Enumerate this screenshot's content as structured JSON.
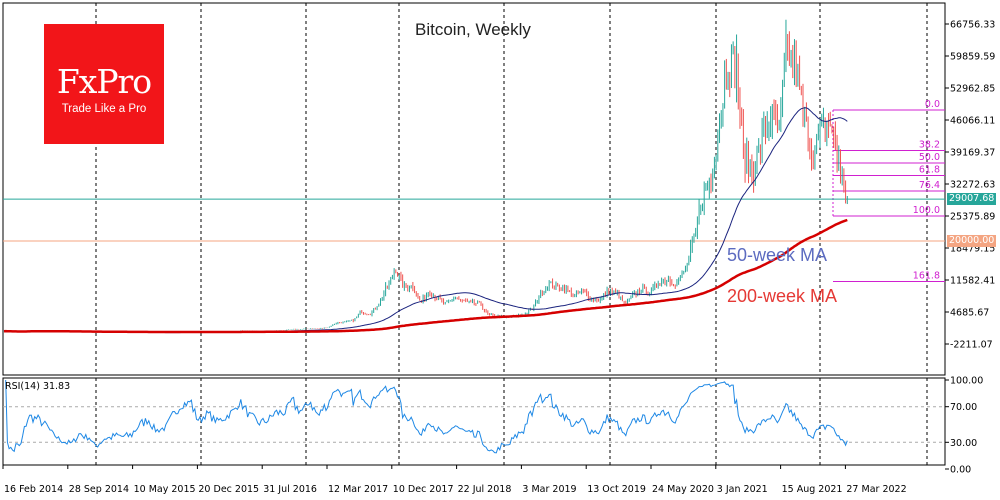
{
  "chart_data": {
    "type": "candlestick",
    "title": "Bitcoin, Weekly",
    "instrument": "Bitcoin",
    "timeframe": "Weekly",
    "y_ticks": [
      "66756.33",
      "59859.59",
      "52962.85",
      "46066.11",
      "39169.37",
      "32272.63",
      "25375.89",
      "18479.15",
      "11582.41",
      "4685.67",
      "-2211.07"
    ],
    "ylim": [
      -5000,
      72000
    ],
    "x_ticks": [
      "16 Feb 2014",
      "28 Sep 2014",
      "10 May 2015",
      "20 Dec 2015",
      "31 Jul 2016",
      "12 Mar 2017",
      "10 Dec 2017",
      "22 Jul 2018",
      "3 Mar 2019",
      "13 Oct 2019",
      "24 May 2020",
      "3 Jan 2021",
      "15 Aug 2021",
      "27 Mar 2022"
    ],
    "monthly_close_approx": {
      "start": "Feb 2014",
      "values": [
        600,
        450,
        440,
        630,
        640,
        590,
        480,
        390,
        340,
        380,
        320,
        220,
        250,
        245,
        235,
        230,
        260,
        285,
        230,
        236,
        315,
        377,
        430,
        370,
        437,
        416,
        448,
        530,
        670,
        624,
        575,
        609,
        700,
        745,
        963,
        970,
        1190,
        1080,
        1350,
        2300,
        2480,
        2875,
        4700,
        4340,
        6450,
        10000,
        14000,
        10200,
        10300,
        6900,
        9200,
        7500,
        6400,
        7700,
        7000,
        6600,
        6300,
        4000,
        3700,
        3450,
        3800,
        4100,
        5300,
        8500,
        10800,
        10000,
        9600,
        8300,
        9200,
        7550,
        7200,
        9350,
        8600,
        6400,
        8600,
        9450,
        9140,
        11350,
        11650,
        10780,
        13800,
        19700,
        29000,
        33100,
        45200,
        58800,
        57700,
        37300,
        35000,
        41500,
        47100,
        43800,
        61300,
        57000,
        46300,
        38500,
        43200,
        45500,
        37700,
        29000
      ]
    },
    "up_color": "#26a69a",
    "down_color": "#ef5350",
    "moving_averages": [
      {
        "name": "50-week MA",
        "period": 50,
        "color": "#1a237e",
        "label_color": "#5c6bc0"
      },
      {
        "name": "200-week MA",
        "period": 200,
        "color": "#d50000",
        "label_color": "#e53935"
      }
    ],
    "horizontal_lines": [
      {
        "value": 29007.68,
        "label": "29007.68",
        "color": "#26a69a"
      },
      {
        "value": 20000.0,
        "label": "20000.00",
        "color": "#f4a582"
      }
    ],
    "fibonacci": {
      "color": "#d020d0",
      "high": 48223,
      "low": 25380,
      "levels": [
        {
          "ratio": 0.0,
          "label": "0.0"
        },
        {
          "ratio": 0.382,
          "label": "38.2"
        },
        {
          "ratio": 0.5,
          "label": "50.0"
        },
        {
          "ratio": 0.618,
          "label": "61.8"
        },
        {
          "ratio": 0.764,
          "label": "76.4"
        },
        {
          "ratio": 1.0,
          "label": "100.0"
        },
        {
          "ratio": 1.618,
          "label": "161.8"
        }
      ]
    },
    "rsi": {
      "label": "RSI(14) 31.83",
      "period": 14,
      "last": 31.83,
      "y_ticks": [
        "100.00",
        "70.00",
        "30.00",
        "0.00"
      ],
      "levels": [
        70,
        30
      ],
      "ylim": [
        0,
        100
      ],
      "color": "#1e88e5"
    },
    "grid": "year separators (dashed vertical)"
  },
  "logo": {
    "brand": "FxPro",
    "tagline": "Trade Like a Pro",
    "color": "#f21519"
  }
}
